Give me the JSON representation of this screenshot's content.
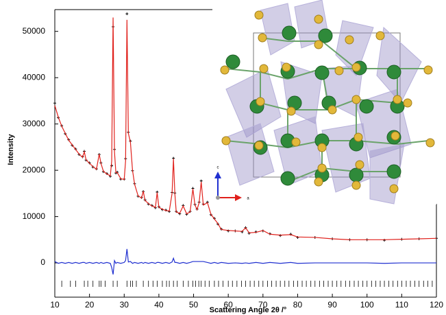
{
  "chart_data": {
    "type": "line",
    "xlabel": "Scattering Angle 2θ /°",
    "ylabel": "Intensity",
    "xlim": [
      10,
      120
    ],
    "ylim": [
      -7400,
      54700
    ],
    "xticks": [
      10,
      20,
      30,
      40,
      50,
      60,
      70,
      80,
      90,
      100,
      110,
      120
    ],
    "yticks": [
      0,
      10000,
      20000,
      30000,
      40000,
      50000
    ],
    "x": [
      10,
      11,
      12,
      13,
      14,
      15,
      16,
      17,
      18,
      18.5,
      19,
      20,
      21,
      22,
      22.8,
      23.3,
      24,
      25,
      26,
      26.4,
      26.8,
      27.2,
      27.6,
      28,
      29,
      30,
      30.4,
      30.8,
      31.2,
      31.8,
      32.4,
      33,
      34,
      35,
      35.5,
      36,
      37,
      38,
      39,
      39.5,
      40,
      41,
      42,
      43,
      43.8,
      44.2,
      44.6,
      45,
      46,
      47,
      48,
      49,
      49.8,
      50.4,
      51,
      51.6,
      52.2,
      52.8,
      54,
      55,
      56,
      57,
      58,
      60,
      62,
      64,
      65,
      66,
      68,
      70,
      72,
      75,
      78,
      80,
      85,
      90,
      95,
      100,
      105,
      110,
      115,
      120
    ],
    "series": [
      {
        "color": "#000000",
        "marker": "cross",
        "values": [
          34500,
          31400,
          29600,
          27900,
          26600,
          25400,
          24600,
          23400,
          22900,
          24100,
          22200,
          21600,
          20700,
          20300,
          23400,
          21600,
          19700,
          19300,
          18700,
          21000,
          51000,
          24500,
          19400,
          19600,
          18100,
          18100,
          22500,
          53800,
          28200,
          26300,
          19900,
          17100,
          14400,
          14100,
          15400,
          13600,
          12700,
          12400,
          11900,
          15300,
          12100,
          11500,
          11400,
          11100,
          15200,
          22600,
          15100,
          11100,
          10600,
          12400,
          10500,
          11100,
          16100,
          12600,
          11600,
          13100,
          17700,
          12700,
          13100,
          10400,
          9600,
          8400,
          7300,
          6900,
          6900,
          6700,
          7600,
          6400,
          6700,
          6900,
          6300,
          5900,
          6200,
          5500,
          5500,
          5200,
          5000,
          5000,
          4900,
          5100,
          5200,
          5300
        ]
      },
      {
        "color": "#e0201b",
        "marker": "line",
        "values": [
          34000,
          31500,
          29500,
          28000,
          26500,
          25500,
          24500,
          23500,
          22800,
          24000,
          22300,
          21500,
          20800,
          20200,
          23500,
          21500,
          19800,
          19200,
          18800,
          22000,
          53000,
          24000,
          19500,
          19500,
          18200,
          18000,
          22000,
          52500,
          28000,
          26000,
          20000,
          17000,
          14500,
          14000,
          15500,
          13500,
          12800,
          12300,
          12000,
          15200,
          12000,
          11600,
          11300,
          11200,
          15000,
          22500,
          15000,
          11000,
          10700,
          12300,
          10600,
          11000,
          16000,
          12500,
          11500,
          13000,
          17500,
          12500,
          13000,
          10500,
          9500,
          8500,
          7200,
          7000,
          6900,
          6800,
          7600,
          6500,
          6600,
          7000,
          6200,
          6000,
          6100,
          5600,
          5500,
          5200,
          5000,
          5000,
          5000,
          5100,
          5200,
          5300
        ]
      },
      {
        "color": "#1f2fd0",
        "marker": "line",
        "values": [
          300,
          -100,
          100,
          -100,
          100,
          -100,
          100,
          -100,
          100,
          100,
          -100,
          100,
          -100,
          100,
          -100,
          100,
          -100,
          100,
          -100,
          -1000,
          -2500,
          500,
          -100,
          100,
          -100,
          100,
          500,
          3000,
          200,
          300,
          -100,
          100,
          -100,
          100,
          -100,
          100,
          -100,
          100,
          -100,
          100,
          100,
          -100,
          100,
          -100,
          200,
          1000,
          100,
          100,
          -100,
          100,
          -100,
          100,
          300,
          300,
          300,
          300,
          300,
          300,
          100,
          -100,
          100,
          -100,
          100,
          -100,
          0,
          -100,
          0,
          -100,
          100,
          -100,
          100,
          -100,
          100,
          -100,
          0,
          0,
          0,
          0,
          -100,
          0,
          0,
          0
        ]
      }
    ],
    "bragg_positions": [
      12,
      14.5,
      16,
      18.5,
      19.5,
      21,
      22.8,
      23.3,
      24.5,
      26.8,
      28,
      30.8,
      31.8,
      32.4,
      33.5,
      35.5,
      37,
      38.3,
      39.5,
      41,
      42.2,
      43,
      44.2,
      45.3,
      47,
      48.5,
      49.8,
      50.6,
      51.5,
      52.2,
      53.3,
      54.5,
      56,
      57.2,
      58.5,
      60,
      61.2,
      62.5,
      63.8,
      65,
      66.3,
      67.5,
      68.8,
      70,
      71.3,
      72.5,
      73.8,
      75,
      76.3,
      77.5,
      78.8,
      80,
      81.3,
      82.5,
      83.8,
      85,
      86.3,
      87.5,
      88.8,
      90,
      91.3,
      92.5,
      93.8,
      95,
      96.3,
      97.5,
      98.8,
      100,
      101.3,
      102.5,
      103.8,
      105,
      106.3,
      107.5,
      108.8,
      110,
      111.3,
      112.5,
      113.8,
      115,
      116.3,
      117.5,
      118.8
    ],
    "inset_axes": [
      "c",
      "a"
    ]
  }
}
